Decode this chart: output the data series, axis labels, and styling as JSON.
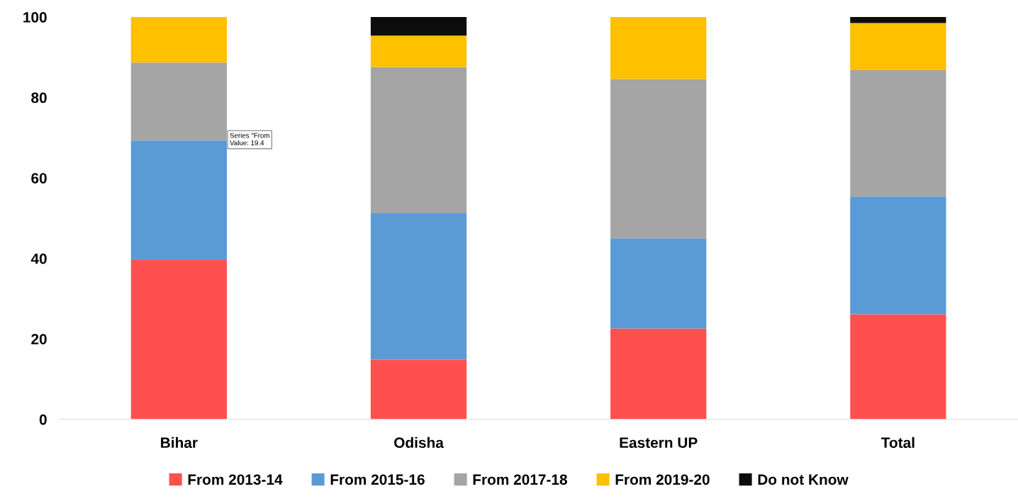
{
  "chart_data": {
    "type": "bar",
    "stacked": true,
    "categories": [
      "Bihar",
      "Odisha",
      "Eastern UP",
      "Total"
    ],
    "series": [
      {
        "name": "From 2013-14",
        "color": "#ff5050",
        "values": [
          39.6,
          14.8,
          22.6,
          26.1
        ]
      },
      {
        "name": "From 2015-16",
        "color": "#5b9bd5",
        "values": [
          29.7,
          36.4,
          22.4,
          29.3
        ]
      },
      {
        "name": "From 2017-18",
        "color": "#a5a5a5",
        "values": [
          19.4,
          36.4,
          39.6,
          31.4
        ]
      },
      {
        "name": "From 2019-20",
        "color": "#ffc000",
        "values": [
          11.3,
          7.8,
          15.4,
          11.7
        ]
      },
      {
        "name": "Do not Know",
        "color": "#0c0c0c",
        "values": [
          0,
          4.6,
          0,
          1.5
        ]
      }
    ],
    "ylim": [
      0,
      100
    ],
    "yticks": [
      0,
      20,
      40,
      60,
      80,
      100
    ],
    "annotations": [
      "Series \"From\nValue: 19.4"
    ],
    "grid": false,
    "legend": "bottom"
  }
}
